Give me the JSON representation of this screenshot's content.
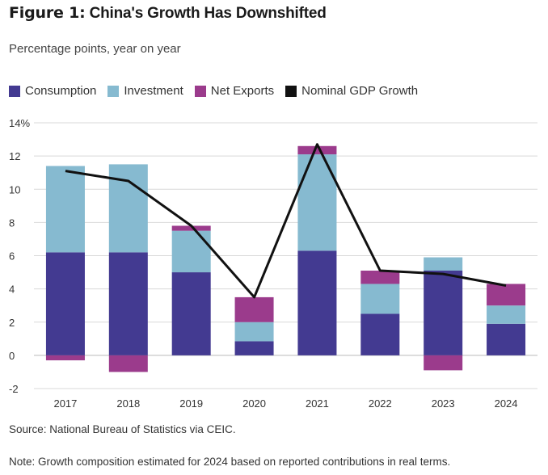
{
  "title": "Figure 1: China's Growth Has Downshifted",
  "title_prefix": "Figure 1:",
  "title_main": "China's Growth Has Downshifted",
  "subtitle": "Percentage points, year on year",
  "legend": [
    {
      "label": "Consumption",
      "color": "#433a91"
    },
    {
      "label": "Investment",
      "color": "#86bad0"
    },
    {
      "label": "Net Exports",
      "color": "#9b3b8c"
    },
    {
      "label": "Nominal GDP Growth",
      "color": "#111111"
    }
  ],
  "source": "Source: National Bureau of Statistics via CEIC.",
  "note": "Note: Growth composition estimated for 2024 based on reported contributions in real terms.",
  "chart_data": {
    "type": "bar",
    "stacked": true,
    "categories": [
      "2017",
      "2018",
      "2019",
      "2020",
      "2021",
      "2022",
      "2023",
      "2024"
    ],
    "series": [
      {
        "name": "Consumption",
        "color": "#433a91",
        "values": [
          6.2,
          6.2,
          5.0,
          0.85,
          6.3,
          2.5,
          5.1,
          1.9
        ]
      },
      {
        "name": "Investment",
        "color": "#86bad0",
        "values": [
          5.2,
          5.3,
          2.5,
          1.15,
          5.8,
          1.8,
          0.8,
          1.1
        ]
      },
      {
        "name": "Net Exports",
        "color": "#9b3b8c",
        "values": [
          -0.3,
          -1.0,
          0.3,
          1.5,
          0.5,
          0.8,
          -0.9,
          1.3
        ]
      }
    ],
    "line": {
      "name": "Nominal GDP Growth",
      "color": "#111111",
      "values": [
        11.1,
        10.5,
        7.8,
        3.5,
        12.7,
        5.1,
        4.9,
        4.2
      ]
    },
    "y_ticks": [
      "14%",
      "12",
      "10",
      "8",
      "6",
      "4",
      "2",
      "0",
      "-2"
    ],
    "y_tick_values": [
      14,
      12,
      10,
      8,
      6,
      4,
      2,
      0,
      -2
    ],
    "ylim": [
      -2,
      14
    ],
    "grid": true
  }
}
